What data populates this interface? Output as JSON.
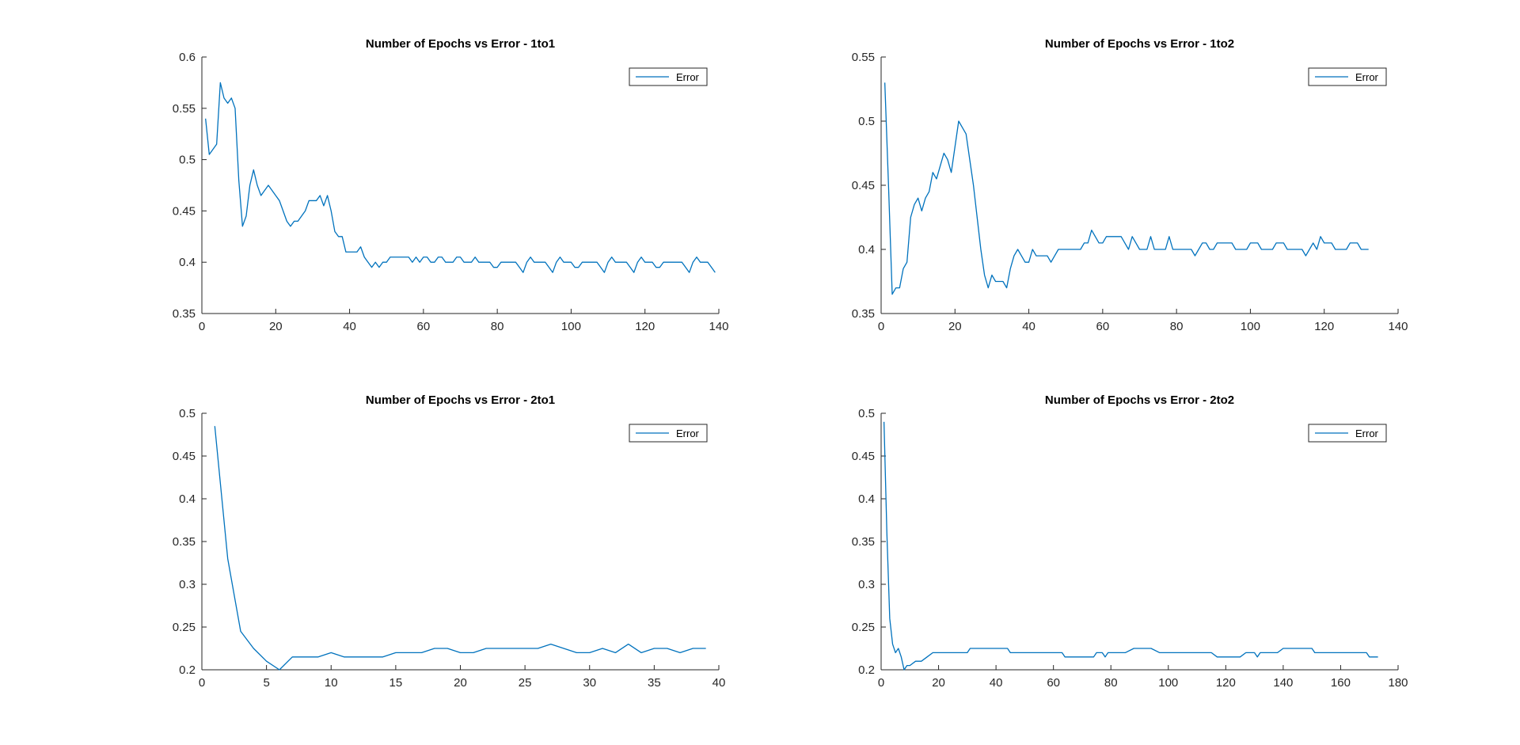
{
  "chart_data": [
    {
      "type": "line",
      "title": "Number of Epochs vs Error - 1to1",
      "xlabel": "",
      "ylabel": "",
      "xlim": [
        0,
        140
      ],
      "ylim": [
        0.35,
        0.6
      ],
      "xticks": [
        "0",
        "20",
        "40",
        "60",
        "80",
        "100",
        "120",
        "140"
      ],
      "yticks": [
        "0.35",
        "0.4",
        "0.45",
        "0.5",
        "0.55",
        "0.6"
      ],
      "legend": "top-right",
      "grid": false,
      "series": [
        {
          "name": "Error",
          "color": "#0072BD",
          "x": [
            1,
            2,
            3,
            4,
            5,
            6,
            7,
            8,
            9,
            10,
            11,
            12,
            13,
            14,
            15,
            16,
            17,
            18,
            19,
            20,
            21,
            22,
            23,
            24,
            25,
            26,
            27,
            28,
            29,
            30,
            31,
            32,
            33,
            34,
            35,
            36,
            37,
            38,
            39,
            40,
            41,
            42,
            43,
            44,
            45,
            46,
            47,
            48,
            49,
            50,
            51,
            52,
            53,
            54,
            55,
            56,
            57,
            58,
            59,
            60,
            61,
            62,
            63,
            64,
            65,
            66,
            67,
            68,
            69,
            70,
            71,
            72,
            73,
            74,
            75,
            76,
            77,
            78,
            79,
            80,
            81,
            82,
            83,
            84,
            85,
            86,
            87,
            88,
            89,
            90,
            91,
            92,
            93,
            94,
            95,
            96,
            97,
            98,
            99,
            100,
            101,
            102,
            103,
            104,
            105,
            106,
            107,
            108,
            109,
            110,
            111,
            112,
            113,
            114,
            115,
            116,
            117,
            118,
            119,
            120,
            121,
            122,
            123,
            124,
            125,
            126,
            127,
            128,
            129,
            130,
            131,
            132,
            133,
            134,
            135,
            136,
            137,
            138,
            139
          ],
          "values": [
            0.54,
            0.505,
            0.51,
            0.515,
            0.575,
            0.56,
            0.555,
            0.56,
            0.55,
            0.48,
            0.435,
            0.445,
            0.475,
            0.49,
            0.475,
            0.465,
            0.47,
            0.475,
            0.47,
            0.465,
            0.46,
            0.45,
            0.44,
            0.435,
            0.44,
            0.44,
            0.445,
            0.45,
            0.46,
            0.46,
            0.46,
            0.465,
            0.455,
            0.465,
            0.45,
            0.43,
            0.425,
            0.425,
            0.41,
            0.41,
            0.41,
            0.41,
            0.415,
            0.405,
            0.4,
            0.395,
            0.4,
            0.395,
            0.4,
            0.4,
            0.405,
            0.405,
            0.405,
            0.405,
            0.405,
            0.405,
            0.4,
            0.405,
            0.4,
            0.405,
            0.405,
            0.4,
            0.4,
            0.405,
            0.405,
            0.4,
            0.4,
            0.4,
            0.405,
            0.405,
            0.4,
            0.4,
            0.4,
            0.405,
            0.4,
            0.4,
            0.4,
            0.4,
            0.395,
            0.395,
            0.4,
            0.4,
            0.4,
            0.4,
            0.4,
            0.395,
            0.39,
            0.4,
            0.405,
            0.4,
            0.4,
            0.4,
            0.4,
            0.395,
            0.39,
            0.4,
            0.405,
            0.4,
            0.4,
            0.4,
            0.395,
            0.395,
            0.4,
            0.4,
            0.4,
            0.4,
            0.4,
            0.395,
            0.39,
            0.4,
            0.405,
            0.4,
            0.4,
            0.4,
            0.4,
            0.395,
            0.39,
            0.4,
            0.405,
            0.4,
            0.4,
            0.4,
            0.395,
            0.395,
            0.4,
            0.4,
            0.4,
            0.4,
            0.4,
            0.4,
            0.395,
            0.39,
            0.4,
            0.405,
            0.4,
            0.4,
            0.4,
            0.395,
            0.39
          ]
        }
      ]
    },
    {
      "type": "line",
      "title": "Number of Epochs vs Error - 1to2",
      "xlabel": "",
      "ylabel": "",
      "xlim": [
        0,
        140
      ],
      "ylim": [
        0.35,
        0.55
      ],
      "xticks": [
        "0",
        "20",
        "40",
        "60",
        "80",
        "100",
        "120",
        "140"
      ],
      "yticks": [
        "0.35",
        "0.4",
        "0.45",
        "0.5",
        "0.55"
      ],
      "legend": "top-right",
      "grid": false,
      "series": [
        {
          "name": "Error",
          "color": "#0072BD",
          "x": [
            1,
            2,
            3,
            4,
            5,
            6,
            7,
            8,
            9,
            10,
            11,
            12,
            13,
            14,
            15,
            16,
            17,
            18,
            19,
            20,
            21,
            22,
            23,
            24,
            25,
            26,
            27,
            28,
            29,
            30,
            31,
            32,
            33,
            34,
            35,
            36,
            37,
            38,
            39,
            40,
            41,
            42,
            43,
            44,
            45,
            46,
            47,
            48,
            49,
            50,
            51,
            52,
            53,
            54,
            55,
            56,
            57,
            58,
            59,
            60,
            61,
            62,
            63,
            64,
            65,
            66,
            67,
            68,
            69,
            70,
            71,
            72,
            73,
            74,
            75,
            76,
            77,
            78,
            79,
            80,
            81,
            82,
            83,
            84,
            85,
            86,
            87,
            88,
            89,
            90,
            91,
            92,
            93,
            94,
            95,
            96,
            97,
            98,
            99,
            100,
            101,
            102,
            103,
            104,
            105,
            106,
            107,
            108,
            109,
            110,
            111,
            112,
            113,
            114,
            115,
            116,
            117,
            118,
            119,
            120,
            121,
            122,
            123,
            124,
            125,
            126,
            127,
            128,
            129,
            130,
            131,
            132
          ],
          "values": [
            0.53,
            0.45,
            0.365,
            0.37,
            0.37,
            0.385,
            0.39,
            0.425,
            0.435,
            0.44,
            0.43,
            0.44,
            0.445,
            0.46,
            0.455,
            0.465,
            0.475,
            0.47,
            0.46,
            0.48,
            0.5,
            0.495,
            0.49,
            0.47,
            0.45,
            0.425,
            0.4,
            0.38,
            0.37,
            0.38,
            0.375,
            0.375,
            0.375,
            0.37,
            0.385,
            0.395,
            0.4,
            0.395,
            0.39,
            0.39,
            0.4,
            0.395,
            0.395,
            0.395,
            0.395,
            0.39,
            0.395,
            0.4,
            0.4,
            0.4,
            0.4,
            0.4,
            0.4,
            0.4,
            0.405,
            0.405,
            0.415,
            0.41,
            0.405,
            0.405,
            0.41,
            0.41,
            0.41,
            0.41,
            0.41,
            0.405,
            0.4,
            0.41,
            0.405,
            0.4,
            0.4,
            0.4,
            0.41,
            0.4,
            0.4,
            0.4,
            0.4,
            0.41,
            0.4,
            0.4,
            0.4,
            0.4,
            0.4,
            0.4,
            0.395,
            0.4,
            0.405,
            0.405,
            0.4,
            0.4,
            0.405,
            0.405,
            0.405,
            0.405,
            0.405,
            0.4,
            0.4,
            0.4,
            0.4,
            0.405,
            0.405,
            0.405,
            0.4,
            0.4,
            0.4,
            0.4,
            0.405,
            0.405,
            0.405,
            0.4,
            0.4,
            0.4,
            0.4,
            0.4,
            0.395,
            0.4,
            0.405,
            0.4,
            0.41,
            0.405,
            0.405,
            0.405,
            0.4,
            0.4,
            0.4,
            0.4,
            0.405,
            0.405,
            0.405,
            0.4,
            0.4,
            0.4
          ]
        }
      ]
    },
    {
      "type": "line",
      "title": "Number of Epochs vs Error - 2to1",
      "xlabel": "",
      "ylabel": "",
      "xlim": [
        0,
        40
      ],
      "ylim": [
        0.2,
        0.5
      ],
      "xticks": [
        "0",
        "5",
        "10",
        "15",
        "20",
        "25",
        "30",
        "35",
        "40"
      ],
      "yticks": [
        "0.2",
        "0.25",
        "0.3",
        "0.35",
        "0.4",
        "0.45",
        "0.5"
      ],
      "legend": "top-right",
      "grid": false,
      "series": [
        {
          "name": "Error",
          "color": "#0072BD",
          "x": [
            1,
            2,
            3,
            4,
            5,
            6,
            7,
            8,
            9,
            10,
            11,
            12,
            13,
            14,
            15,
            16,
            17,
            18,
            19,
            20,
            21,
            22,
            23,
            24,
            25,
            26,
            27,
            28,
            29,
            30,
            31,
            32,
            33,
            34,
            35,
            36,
            37,
            38,
            39
          ],
          "values": [
            0.485,
            0.33,
            0.245,
            0.225,
            0.21,
            0.2,
            0.215,
            0.215,
            0.215,
            0.22,
            0.215,
            0.215,
            0.215,
            0.215,
            0.22,
            0.22,
            0.22,
            0.225,
            0.225,
            0.22,
            0.22,
            0.225,
            0.225,
            0.225,
            0.225,
            0.225,
            0.23,
            0.225,
            0.22,
            0.22,
            0.225,
            0.22,
            0.23,
            0.22,
            0.225,
            0.225,
            0.22,
            0.225,
            0.225
          ]
        }
      ]
    },
    {
      "type": "line",
      "title": "Number of Epochs vs Error - 2to2",
      "xlabel": "",
      "ylabel": "",
      "xlim": [
        0,
        180
      ],
      "ylim": [
        0.2,
        0.5
      ],
      "xticks": [
        "0",
        "20",
        "40",
        "60",
        "80",
        "100",
        "120",
        "140",
        "160",
        "180"
      ],
      "yticks": [
        "0.2",
        "0.25",
        "0.3",
        "0.35",
        "0.4",
        "0.45",
        "0.5"
      ],
      "legend": "top-right",
      "grid": false,
      "series": [
        {
          "name": "Error",
          "color": "#0072BD",
          "x": [
            1,
            2,
            3,
            4,
            5,
            6,
            7,
            8,
            9,
            10,
            12,
            14,
            16,
            18,
            20,
            22,
            24,
            26,
            28,
            30,
            31,
            32,
            35,
            38,
            41,
            44,
            45,
            46,
            50,
            55,
            60,
            63,
            64,
            65,
            70,
            74,
            75,
            77,
            78,
            79,
            82,
            85,
            88,
            91,
            94,
            97,
            100,
            105,
            110,
            115,
            117,
            118,
            120,
            125,
            127,
            128,
            130,
            131,
            132,
            135,
            138,
            140,
            142,
            145,
            148,
            150,
            151,
            155,
            160,
            165,
            169,
            170,
            173
          ],
          "values": [
            0.49,
            0.36,
            0.26,
            0.23,
            0.22,
            0.225,
            0.215,
            0.2,
            0.205,
            0.205,
            0.21,
            0.21,
            0.215,
            0.22,
            0.22,
            0.22,
            0.22,
            0.22,
            0.22,
            0.22,
            0.225,
            0.225,
            0.225,
            0.225,
            0.225,
            0.225,
            0.22,
            0.22,
            0.22,
            0.22,
            0.22,
            0.22,
            0.215,
            0.215,
            0.215,
            0.215,
            0.22,
            0.22,
            0.215,
            0.22,
            0.22,
            0.22,
            0.225,
            0.225,
            0.225,
            0.22,
            0.22,
            0.22,
            0.22,
            0.22,
            0.215,
            0.215,
            0.215,
            0.215,
            0.22,
            0.22,
            0.22,
            0.215,
            0.22,
            0.22,
            0.22,
            0.225,
            0.225,
            0.225,
            0.225,
            0.225,
            0.22,
            0.22,
            0.22,
            0.22,
            0.22,
            0.215,
            0.215
          ]
        }
      ]
    }
  ]
}
